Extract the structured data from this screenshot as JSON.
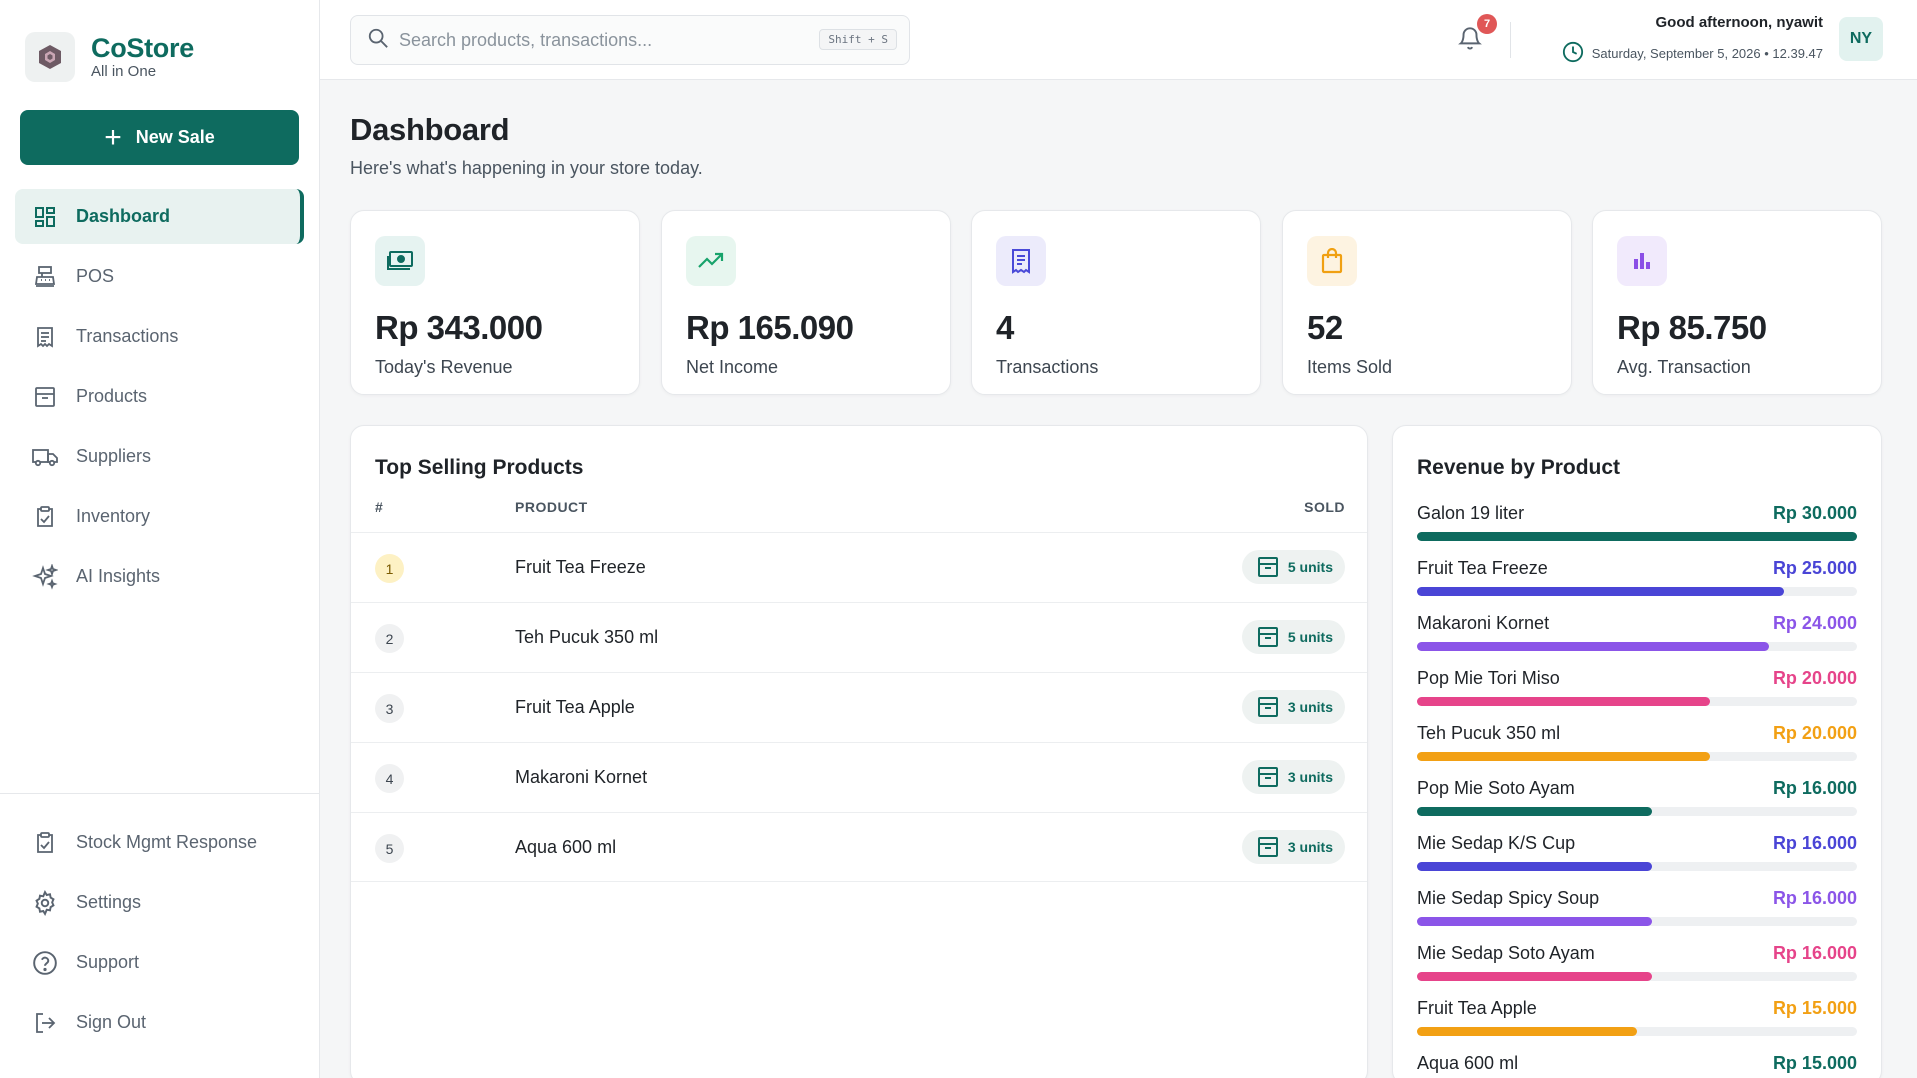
{
  "brand": {
    "name": "CoStore",
    "tagline": "All in One"
  },
  "sidebar": {
    "new_sale_label": "New Sale",
    "items": [
      {
        "label": "Dashboard",
        "icon": "dashboard-icon",
        "active": true
      },
      {
        "label": "POS",
        "icon": "register-icon"
      },
      {
        "label": "Transactions",
        "icon": "receipt-icon"
      },
      {
        "label": "Products",
        "icon": "archive-icon"
      },
      {
        "label": "Suppliers",
        "icon": "truck-icon"
      },
      {
        "label": "Inventory",
        "icon": "clipboard-check-icon"
      },
      {
        "label": "AI Insights",
        "icon": "sparkles-icon"
      }
    ],
    "bottom_items": [
      {
        "label": "Stock Mgmt Response",
        "icon": "clipboard-check-icon"
      },
      {
        "label": "Settings",
        "icon": "gear-icon"
      },
      {
        "label": "Support",
        "icon": "help-circle-icon"
      },
      {
        "label": "Sign Out",
        "icon": "sign-out-icon"
      }
    ]
  },
  "header": {
    "search_placeholder": "Search products, transactions...",
    "search_shortcut": "Shift + S",
    "notification_count": "7",
    "greeting": "Good afternoon, nyawit",
    "datetime": "Saturday, September 5, 2026 • 12.39.47",
    "avatar_initials": "NY"
  },
  "page": {
    "title": "Dashboard",
    "subtitle": "Here's what's happening in your store today."
  },
  "stats": [
    {
      "value": "Rp 343.000",
      "label": "Today's Revenue",
      "icon": "cash-icon",
      "color": "#0e6b5f",
      "bg": "#e6f3f1"
    },
    {
      "value": "Rp 165.090",
      "label": "Net Income",
      "icon": "trending-up-icon",
      "color": "#18a36b",
      "bg": "#e7f6ef"
    },
    {
      "value": "4",
      "label": "Transactions",
      "icon": "receipt-icon",
      "color": "#4a4ad8",
      "bg": "#ecebfb"
    },
    {
      "value": "52",
      "label": "Items Sold",
      "icon": "shopping-bag-icon",
      "color": "#f0a012",
      "bg": "#fdf3e1"
    },
    {
      "value": "Rp 85.750",
      "label": "Avg. Transaction",
      "icon": "bar-chart-icon",
      "color": "#8b4fe6",
      "bg": "#f1eafc"
    }
  ],
  "top_selling": {
    "title": "Top Selling Products",
    "columns": {
      "rank": "#",
      "product": "PRODUCT",
      "sold": "SOLD"
    },
    "rows": [
      {
        "rank": "1",
        "product": "Fruit Tea Freeze",
        "sold": "5 units"
      },
      {
        "rank": "2",
        "product": "Teh Pucuk 350 ml",
        "sold": "5 units"
      },
      {
        "rank": "3",
        "product": "Fruit Tea Apple",
        "sold": "3 units"
      },
      {
        "rank": "4",
        "product": "Makaroni Kornet",
        "sold": "3 units"
      },
      {
        "rank": "5",
        "product": "Aqua 600 ml",
        "sold": "3 units"
      }
    ]
  },
  "revenue_by_product": {
    "title": "Revenue by Product",
    "max": 30000,
    "items": [
      {
        "name": "Galon 19 liter",
        "value_label": "Rp 30.000",
        "value": 30000,
        "color": "#0e6b5f"
      },
      {
        "name": "Fruit Tea Freeze",
        "value_label": "Rp 25.000",
        "value": 25000,
        "color": "#4a45d6"
      },
      {
        "name": "Makaroni Kornet",
        "value_label": "Rp 24.000",
        "value": 24000,
        "color": "#8b55e8"
      },
      {
        "name": "Pop Mie Tori Miso",
        "value_label": "Rp 20.000",
        "value": 20000,
        "color": "#e6448a"
      },
      {
        "name": "Teh Pucuk 350 ml",
        "value_label": "Rp 20.000",
        "value": 20000,
        "color": "#f2a014"
      },
      {
        "name": "Pop Mie Soto Ayam",
        "value_label": "Rp 16.000",
        "value": 16000,
        "color": "#0e6b5f"
      },
      {
        "name": "Mie Sedap K/S Cup",
        "value_label": "Rp 16.000",
        "value": 16000,
        "color": "#4a45d6"
      },
      {
        "name": "Mie Sedap Spicy Soup",
        "value_label": "Rp 16.000",
        "value": 16000,
        "color": "#8b55e8"
      },
      {
        "name": "Mie Sedap Soto Ayam",
        "value_label": "Rp 16.000",
        "value": 16000,
        "color": "#e6448a"
      },
      {
        "name": "Fruit Tea Apple",
        "value_label": "Rp 15.000",
        "value": 15000,
        "color": "#f2a014"
      },
      {
        "name": "Aqua 600 ml",
        "value_label": "Rp 15.000",
        "value": 15000,
        "color": "#0e6b5f"
      }
    ]
  }
}
